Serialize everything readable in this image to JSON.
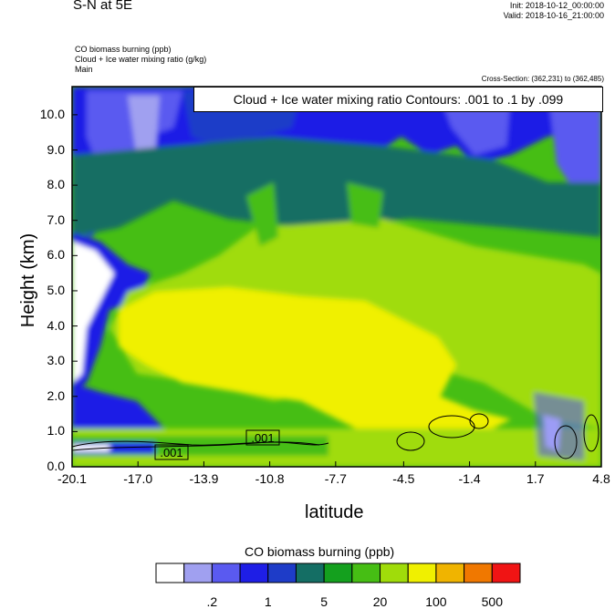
{
  "header": {
    "title": "S-N at 5E",
    "init": "Init: 2018-10-12_00:00:00",
    "valid": "Valid: 2018-10-16_21:00:00",
    "field1": "CO biomass burning   (ppb)",
    "field2": "Cloud + Ice water mixing ratio   (g/kg)",
    "field3": "Main",
    "cross_section": "Cross-Section: (362,231) to (362,485)"
  },
  "contour_label": "Cloud + Ice water mixing ratio Contours: .001 to .1 by .099",
  "chart_data": {
    "type": "heatmap",
    "xlabel": "latitude",
    "ylabel": "Height (km)",
    "xlim": [
      -20.1,
      4.8
    ],
    "ylim": [
      0.0,
      10.8
    ],
    "x_ticks": [
      "-20.1",
      "-17.0",
      "-13.9",
      "-10.8",
      "-7.7",
      "-4.5",
      "-1.4",
      "1.7",
      "4.8"
    ],
    "y_ticks": [
      "0.0",
      "1.0",
      "2.0",
      "3.0",
      "4.0",
      "5.0",
      "6.0",
      "7.0",
      "8.0",
      "9.0",
      "10.0"
    ],
    "colorbar": {
      "title": "CO biomass burning  (ppb)",
      "colors": [
        "#ffffff",
        "#a0a0f0",
        "#5a5af0",
        "#1e1ee6",
        "#1e3cc8",
        "#146e64",
        "#14a01e",
        "#46be14",
        "#a0dc0a",
        "#f0f000",
        "#f0b400",
        "#f07800",
        "#f01414"
      ],
      "tick_labels": [
        ".2",
        "1",
        "5",
        "20",
        "100",
        "500"
      ]
    },
    "contour_labels": [
      ".001",
      ".001"
    ],
    "regions": [
      {
        "name": "upper-blue-band",
        "level": "1-5"
      },
      {
        "name": "mid-green-field",
        "level": "5-20"
      },
      {
        "name": "yellow-plume",
        "level": "20-100"
      },
      {
        "name": "lower-surface-layer",
        "level": "20-50"
      }
    ]
  }
}
